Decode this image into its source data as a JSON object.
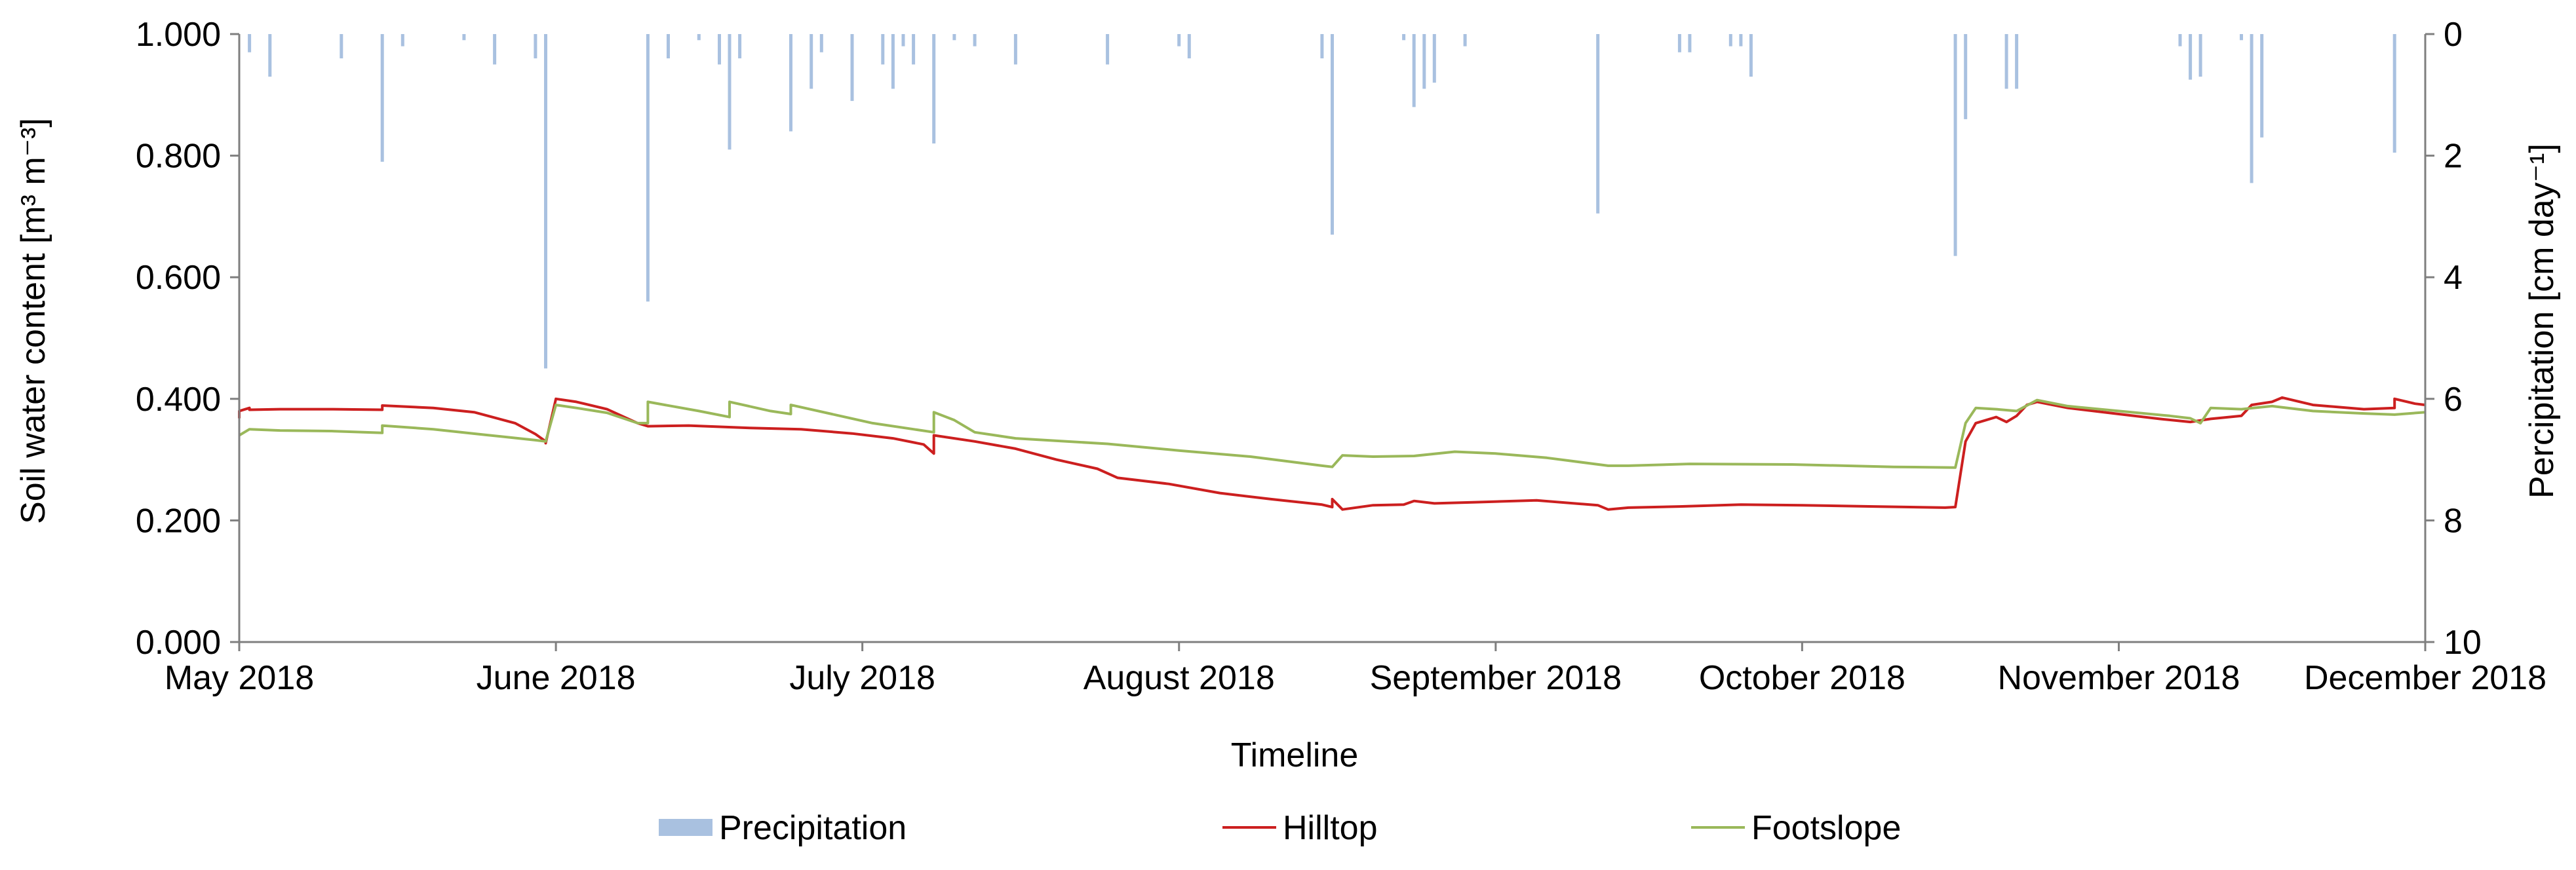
{
  "chart_data": {
    "type": "line",
    "xlabel": "Timeline",
    "ylabel_left": "Soil water content [m³ m⁻³]",
    "ylabel_right": "Percipitation [cm day⁻¹]",
    "x_start": "2018-05-01",
    "x_end": "2018-12-01",
    "x_tick_labels": [
      "May 2018",
      "June 2018",
      "July 2018",
      "August 2018",
      "September 2018",
      "October 2018",
      "November 2018",
      "December 2018"
    ],
    "x_tick_dates": [
      "2018-05-01",
      "2018-06-01",
      "2018-07-01",
      "2018-08-01",
      "2018-09-01",
      "2018-10-01",
      "2018-11-01",
      "2018-12-01"
    ],
    "ylim_left": [
      0,
      1
    ],
    "yticks_left": [
      "0.000",
      "0.200",
      "0.400",
      "0.600",
      "0.800",
      "1.000"
    ],
    "ylim_right": [
      0,
      10
    ],
    "yticks_right": [
      "0",
      "2",
      "4",
      "6",
      "8",
      "10"
    ],
    "right_axis_inverted": true,
    "grid": false,
    "legend_position": "bottom",
    "legend": [
      "Precipitation",
      "Hilltop",
      "Footslope"
    ],
    "colors": {
      "Precipitation": "#a9c1e0",
      "Hilltop": "#cc1f1f",
      "Footslope": "#9ab85a"
    },
    "series": [
      {
        "name": "Precipitation",
        "type": "bar",
        "axis": "right",
        "points": [
          [
            "2018-05-02",
            0.3
          ],
          [
            "2018-05-04",
            0.7
          ],
          [
            "2018-05-11",
            0.4
          ],
          [
            "2018-05-15",
            2.1
          ],
          [
            "2018-05-17",
            0.2
          ],
          [
            "2018-05-23",
            0.1
          ],
          [
            "2018-05-26",
            0.5
          ],
          [
            "2018-05-30",
            0.4
          ],
          [
            "2018-05-31",
            5.5
          ],
          [
            "2018-06-10",
            4.4
          ],
          [
            "2018-06-12",
            0.4
          ],
          [
            "2018-06-15",
            0.1
          ],
          [
            "2018-06-17",
            0.5
          ],
          [
            "2018-06-18",
            1.9
          ],
          [
            "2018-06-19",
            0.4
          ],
          [
            "2018-06-24",
            1.6
          ],
          [
            "2018-06-26",
            0.9
          ],
          [
            "2018-06-27",
            0.3
          ],
          [
            "2018-06-30",
            1.1
          ],
          [
            "2018-07-03",
            0.5
          ],
          [
            "2018-07-04",
            0.9
          ],
          [
            "2018-07-05",
            0.2
          ],
          [
            "2018-07-06",
            0.5
          ],
          [
            "2018-07-08",
            1.8
          ],
          [
            "2018-07-10",
            0.1
          ],
          [
            "2018-07-12",
            0.2
          ],
          [
            "2018-07-16",
            0.5
          ],
          [
            "2018-07-25",
            0.5
          ],
          [
            "2018-08-01",
            0.2
          ],
          [
            "2018-08-02",
            0.4
          ],
          [
            "2018-08-15",
            0.4
          ],
          [
            "2018-08-16",
            3.3
          ],
          [
            "2018-08-23",
            0.1
          ],
          [
            "2018-08-24",
            1.2
          ],
          [
            "2018-08-25",
            0.9
          ],
          [
            "2018-08-26",
            0.8
          ],
          [
            "2018-08-29",
            0.2
          ],
          [
            "2018-09-11",
            2.95
          ],
          [
            "2018-09-19",
            0.3
          ],
          [
            "2018-09-20",
            0.3
          ],
          [
            "2018-09-24",
            0.2
          ],
          [
            "2018-09-25",
            0.2
          ],
          [
            "2018-09-26",
            0.7
          ],
          [
            "2018-10-16",
            3.65
          ],
          [
            "2018-10-17",
            1.4
          ],
          [
            "2018-10-21",
            0.9
          ],
          [
            "2018-10-22",
            0.9
          ],
          [
            "2018-11-07",
            0.2
          ],
          [
            "2018-11-08",
            0.75
          ],
          [
            "2018-11-09",
            0.7
          ],
          [
            "2018-11-13",
            0.1
          ],
          [
            "2018-11-14",
            2.45
          ],
          [
            "2018-11-15",
            1.7
          ],
          [
            "2018-11-28",
            1.95
          ]
        ]
      },
      {
        "name": "Hilltop",
        "axis": "left",
        "points": [
          [
            "2018-05-01",
            0.368
          ],
          [
            "2018-05-01",
            0.38
          ],
          [
            "2018-05-02",
            0.385
          ],
          [
            "2018-05-02",
            0.382
          ],
          [
            "2018-05-05",
            0.383
          ],
          [
            "2018-05-10",
            0.383
          ],
          [
            "2018-05-15",
            0.382
          ],
          [
            "2018-05-15",
            0.389
          ],
          [
            "2018-05-20",
            0.385
          ],
          [
            "2018-05-24",
            0.378
          ],
          [
            "2018-05-28",
            0.36
          ],
          [
            "2018-05-30",
            0.342
          ],
          [
            "2018-05-31",
            0.33
          ],
          [
            "2018-05-31",
            0.327
          ],
          [
            "2018-06-01",
            0.4
          ],
          [
            "2018-06-03",
            0.395
          ],
          [
            "2018-06-06",
            0.383
          ],
          [
            "2018-06-09",
            0.36
          ],
          [
            "2018-06-10",
            0.355
          ],
          [
            "2018-06-14",
            0.356
          ],
          [
            "2018-06-20",
            0.352
          ],
          [
            "2018-06-25",
            0.35
          ],
          [
            "2018-06-30",
            0.343
          ],
          [
            "2018-07-04",
            0.335
          ],
          [
            "2018-07-07",
            0.325
          ],
          [
            "2018-07-08",
            0.31
          ],
          [
            "2018-07-08",
            0.34
          ],
          [
            "2018-07-12",
            0.33
          ],
          [
            "2018-07-16",
            0.318
          ],
          [
            "2018-07-20",
            0.3
          ],
          [
            "2018-07-24",
            0.285
          ],
          [
            "2018-07-26",
            0.27
          ],
          [
            "2018-07-31",
            0.26
          ],
          [
            "2018-08-05",
            0.245
          ],
          [
            "2018-08-10",
            0.235
          ],
          [
            "2018-08-15",
            0.226
          ],
          [
            "2018-08-16",
            0.222
          ],
          [
            "2018-08-16",
            0.235
          ],
          [
            "2018-08-17",
            0.218
          ],
          [
            "2018-08-20",
            0.225
          ],
          [
            "2018-08-23",
            0.226
          ],
          [
            "2018-08-24",
            0.232
          ],
          [
            "2018-08-26",
            0.228
          ],
          [
            "2018-08-30",
            0.23
          ],
          [
            "2018-09-05",
            0.233
          ],
          [
            "2018-09-11",
            0.225
          ],
          [
            "2018-09-12",
            0.218
          ],
          [
            "2018-09-14",
            0.221
          ],
          [
            "2018-09-19",
            0.223
          ],
          [
            "2018-09-25",
            0.226
          ],
          [
            "2018-10-01",
            0.225
          ],
          [
            "2018-10-08",
            0.223
          ],
          [
            "2018-10-15",
            0.221
          ],
          [
            "2018-10-16",
            0.222
          ],
          [
            "2018-10-17",
            0.33
          ],
          [
            "2018-10-18",
            0.36
          ],
          [
            "2018-10-20",
            0.37
          ],
          [
            "2018-10-21",
            0.362
          ],
          [
            "2018-10-22",
            0.372
          ],
          [
            "2018-10-23",
            0.39
          ],
          [
            "2018-10-24",
            0.395
          ],
          [
            "2018-10-27",
            0.385
          ],
          [
            "2018-11-01",
            0.375
          ],
          [
            "2018-11-05",
            0.367
          ],
          [
            "2018-11-08",
            0.362
          ],
          [
            "2018-11-10",
            0.367
          ],
          [
            "2018-11-13",
            0.372
          ],
          [
            "2018-11-14",
            0.39
          ],
          [
            "2018-11-16",
            0.395
          ],
          [
            "2018-11-17",
            0.402
          ],
          [
            "2018-11-20",
            0.39
          ],
          [
            "2018-11-25",
            0.383
          ],
          [
            "2018-11-28",
            0.385
          ],
          [
            "2018-11-28",
            0.4
          ],
          [
            "2018-11-30",
            0.392
          ],
          [
            "2018-12-01",
            0.39
          ]
        ]
      },
      {
        "name": "Footslope",
        "axis": "left",
        "points": [
          [
            "2018-05-01",
            0.34
          ],
          [
            "2018-05-02",
            0.35
          ],
          [
            "2018-05-05",
            0.348
          ],
          [
            "2018-05-10",
            0.347
          ],
          [
            "2018-05-15",
            0.344
          ],
          [
            "2018-05-15",
            0.356
          ],
          [
            "2018-05-20",
            0.35
          ],
          [
            "2018-05-25",
            0.341
          ],
          [
            "2018-05-30",
            0.332
          ],
          [
            "2018-05-31",
            0.33
          ],
          [
            "2018-06-01",
            0.39
          ],
          [
            "2018-06-03",
            0.385
          ],
          [
            "2018-06-06",
            0.377
          ],
          [
            "2018-06-09",
            0.36
          ],
          [
            "2018-06-10",
            0.36
          ],
          [
            "2018-06-10",
            0.395
          ],
          [
            "2018-06-15",
            0.38
          ],
          [
            "2018-06-18",
            0.37
          ],
          [
            "2018-06-18",
            0.395
          ],
          [
            "2018-06-22",
            0.38
          ],
          [
            "2018-06-24",
            0.375
          ],
          [
            "2018-06-24",
            0.39
          ],
          [
            "2018-06-28",
            0.375
          ],
          [
            "2018-07-02",
            0.36
          ],
          [
            "2018-07-06",
            0.35
          ],
          [
            "2018-07-08",
            0.345
          ],
          [
            "2018-07-08",
            0.378
          ],
          [
            "2018-07-10",
            0.365
          ],
          [
            "2018-07-12",
            0.345
          ],
          [
            "2018-07-16",
            0.335
          ],
          [
            "2018-07-25",
            0.326
          ],
          [
            "2018-08-01",
            0.315
          ],
          [
            "2018-08-08",
            0.305
          ],
          [
            "2018-08-15",
            0.29
          ],
          [
            "2018-08-16",
            0.288
          ],
          [
            "2018-08-17",
            0.307
          ],
          [
            "2018-08-20",
            0.305
          ],
          [
            "2018-08-24",
            0.306
          ],
          [
            "2018-08-28",
            0.313
          ],
          [
            "2018-09-01",
            0.31
          ],
          [
            "2018-09-06",
            0.303
          ],
          [
            "2018-09-12",
            0.29
          ],
          [
            "2018-09-14",
            0.29
          ],
          [
            "2018-09-20",
            0.293
          ],
          [
            "2018-09-30",
            0.292
          ],
          [
            "2018-10-10",
            0.288
          ],
          [
            "2018-10-16",
            0.287
          ],
          [
            "2018-10-17",
            0.36
          ],
          [
            "2018-10-18",
            0.385
          ],
          [
            "2018-10-20",
            0.383
          ],
          [
            "2018-10-22",
            0.38
          ],
          [
            "2018-10-24",
            0.398
          ],
          [
            "2018-10-27",
            0.388
          ],
          [
            "2018-11-01",
            0.38
          ],
          [
            "2018-11-06",
            0.372
          ],
          [
            "2018-11-08",
            0.368
          ],
          [
            "2018-11-09",
            0.36
          ],
          [
            "2018-11-10",
            0.385
          ],
          [
            "2018-11-13",
            0.383
          ],
          [
            "2018-11-16",
            0.388
          ],
          [
            "2018-11-20",
            0.38
          ],
          [
            "2018-11-25",
            0.376
          ],
          [
            "2018-11-28",
            0.374
          ],
          [
            "2018-12-01",
            0.378
          ]
        ]
      }
    ]
  }
}
